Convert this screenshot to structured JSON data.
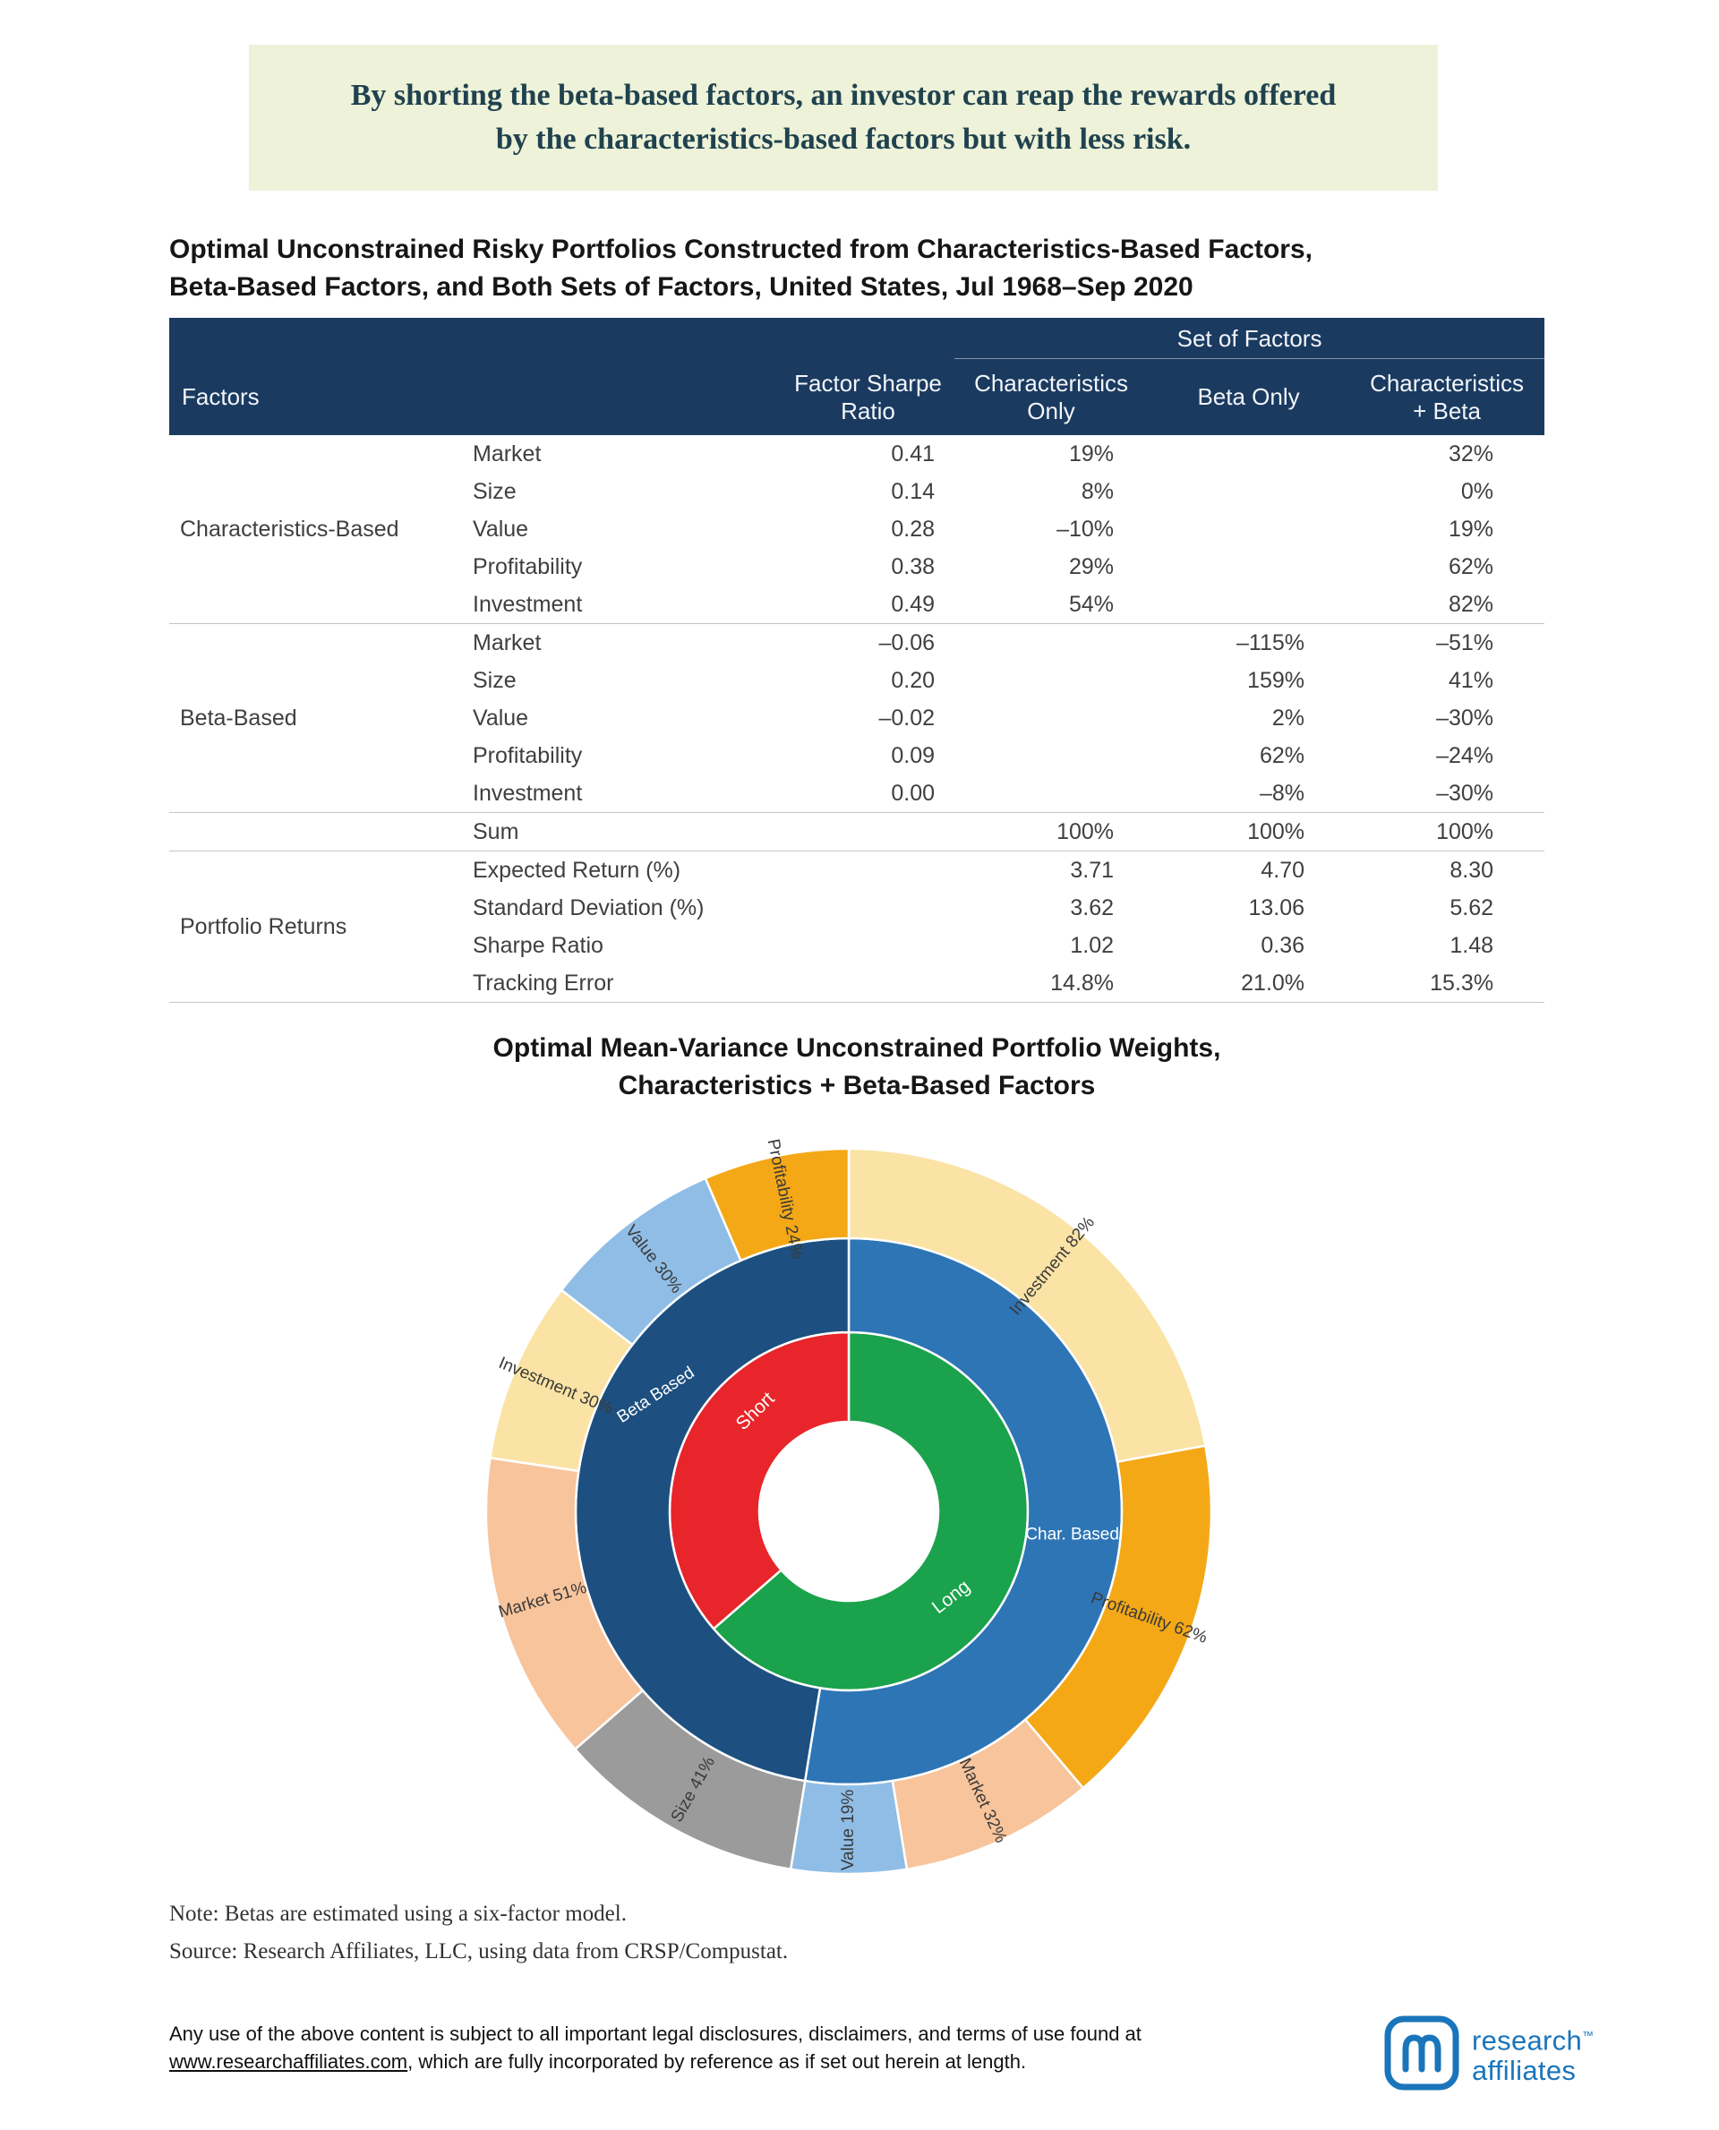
{
  "banner": {
    "text": "By shorting the beta-based factors, an investor can reap the rewards offered by the characteristics-based factors but with less risk."
  },
  "colors": {
    "banner_bg": "#edf2d8",
    "table_header_bg": "#1a3a60",
    "logo_blue": "#1a75bb"
  },
  "notes": {
    "note": "Note: Betas are estimated using a six-factor model.",
    "source": "Source: Research Affiliates, LLC, using data from CRSP/Compustat."
  },
  "footer": {
    "pre": "Any use of the above content is subject to all important legal disclosures, disclaimers, and terms of use found at ",
    "link": "www.researchaffiliates.com",
    "post": ", which are fully incorporated by reference as if set out herein at length."
  },
  "logo": {
    "name_top": "research",
    "tm": "™",
    "name_bottom": "affiliates"
  },
  "chart_data": [
    {
      "type": "table",
      "title_line1": "Optimal Unconstrained Risky Portfolios Constructed from Characteristics-Based Factors,",
      "title_line2": "Beta-Based Factors, and Both Sets of Factors, United States, Jul 1968–Sep 2020",
      "header": {
        "set_of_factors": "Set of Factors",
        "factors": "Factors",
        "factor_sharpe_ratio": "Factor Sharpe\nRatio",
        "characteristics_only": "Characteristics\nOnly",
        "beta_only": "Beta Only",
        "characteristics_beta": "Characteristics\n+ Beta"
      },
      "groups": [
        {
          "name": "Characteristics-Based",
          "rows": [
            [
              "Market",
              "0.41",
              "19%",
              "",
              "32%"
            ],
            [
              "Size",
              "0.14",
              "8%",
              "",
              "0%"
            ],
            [
              "Value",
              "0.28",
              "–10%",
              "",
              "19%"
            ],
            [
              "Profitability",
              "0.38",
              "29%",
              "",
              "62%"
            ],
            [
              "Investment",
              "0.49",
              "54%",
              "",
              "82%"
            ]
          ]
        },
        {
          "name": "Beta-Based",
          "rows": [
            [
              "Market",
              "–0.06",
              "",
              "–115%",
              "–51%"
            ],
            [
              "Size",
              "0.20",
              "",
              "159%",
              "41%"
            ],
            [
              "Value",
              "–0.02",
              "",
              "2%",
              "–30%"
            ],
            [
              "Profitability",
              "0.09",
              "",
              "62%",
              "–24%"
            ],
            [
              "Investment",
              "0.00",
              "",
              "–8%",
              "–30%"
            ]
          ]
        },
        {
          "name": "",
          "rows": [
            [
              "Sum",
              "",
              "100%",
              "100%",
              "100%"
            ]
          ]
        },
        {
          "name": "Portfolio Returns",
          "rows": [
            [
              "Expected Return (%)",
              "",
              "3.71",
              "4.70",
              "8.30"
            ],
            [
              "Standard Deviation (%)",
              "",
              "3.62",
              "13.06",
              "5.62"
            ],
            [
              "Sharpe Ratio",
              "",
              "1.02",
              "0.36",
              "1.48"
            ],
            [
              "Tracking Error",
              "",
              "14.8%",
              "21.0%",
              "15.3%"
            ]
          ]
        }
      ]
    },
    {
      "type": "pie",
      "subtype": "sunburst-donut-3-ring",
      "title_line1": "Optimal Mean-Variance Unconstrained Portfolio Weights,",
      "title_line2": "Characteristics + Beta-Based Factors",
      "total_abs_weight": 371,
      "start_angle_deg": 0,
      "direction": "clockwise",
      "rings": {
        "inner": [
          {
            "label": "Long",
            "value": 236,
            "color": "#1ba24c"
          },
          {
            "label": "Short",
            "value": 135,
            "color": "#e8252a"
          }
        ],
        "middle": [
          {
            "label": "Char. Based",
            "value": 195,
            "color": "#2e75b6"
          },
          {
            "label": "Beta Based",
            "value": 176,
            "color": "#1d5080"
          }
        ],
        "outer": [
          {
            "label": "Investment",
            "pct": "82%",
            "value": 82,
            "color": "#fbe3a5"
          },
          {
            "label": "Profitability",
            "pct": "62%",
            "value": 62,
            "color": "#f4a816"
          },
          {
            "label": "Market",
            "pct": "32%",
            "value": 32,
            "color": "#f8c49c"
          },
          {
            "label": "Value",
            "pct": "19%",
            "value": 19,
            "color": "#8fbde6"
          },
          {
            "label": "Size",
            "pct": "41%",
            "value": 41,
            "color": "#9b9b9b"
          },
          {
            "label": "Market",
            "pct": "51%",
            "value": 51,
            "color": "#f8c49c"
          },
          {
            "label": "Investment",
            "pct": "30%",
            "value": 30,
            "color": "#fbe3a5"
          },
          {
            "label": "Value",
            "pct": "30%",
            "value": 30,
            "color": "#8fbde6"
          },
          {
            "label": "Profitability",
            "pct": "24%",
            "value": 24,
            "color": "#f4a816"
          }
        ]
      }
    }
  ]
}
